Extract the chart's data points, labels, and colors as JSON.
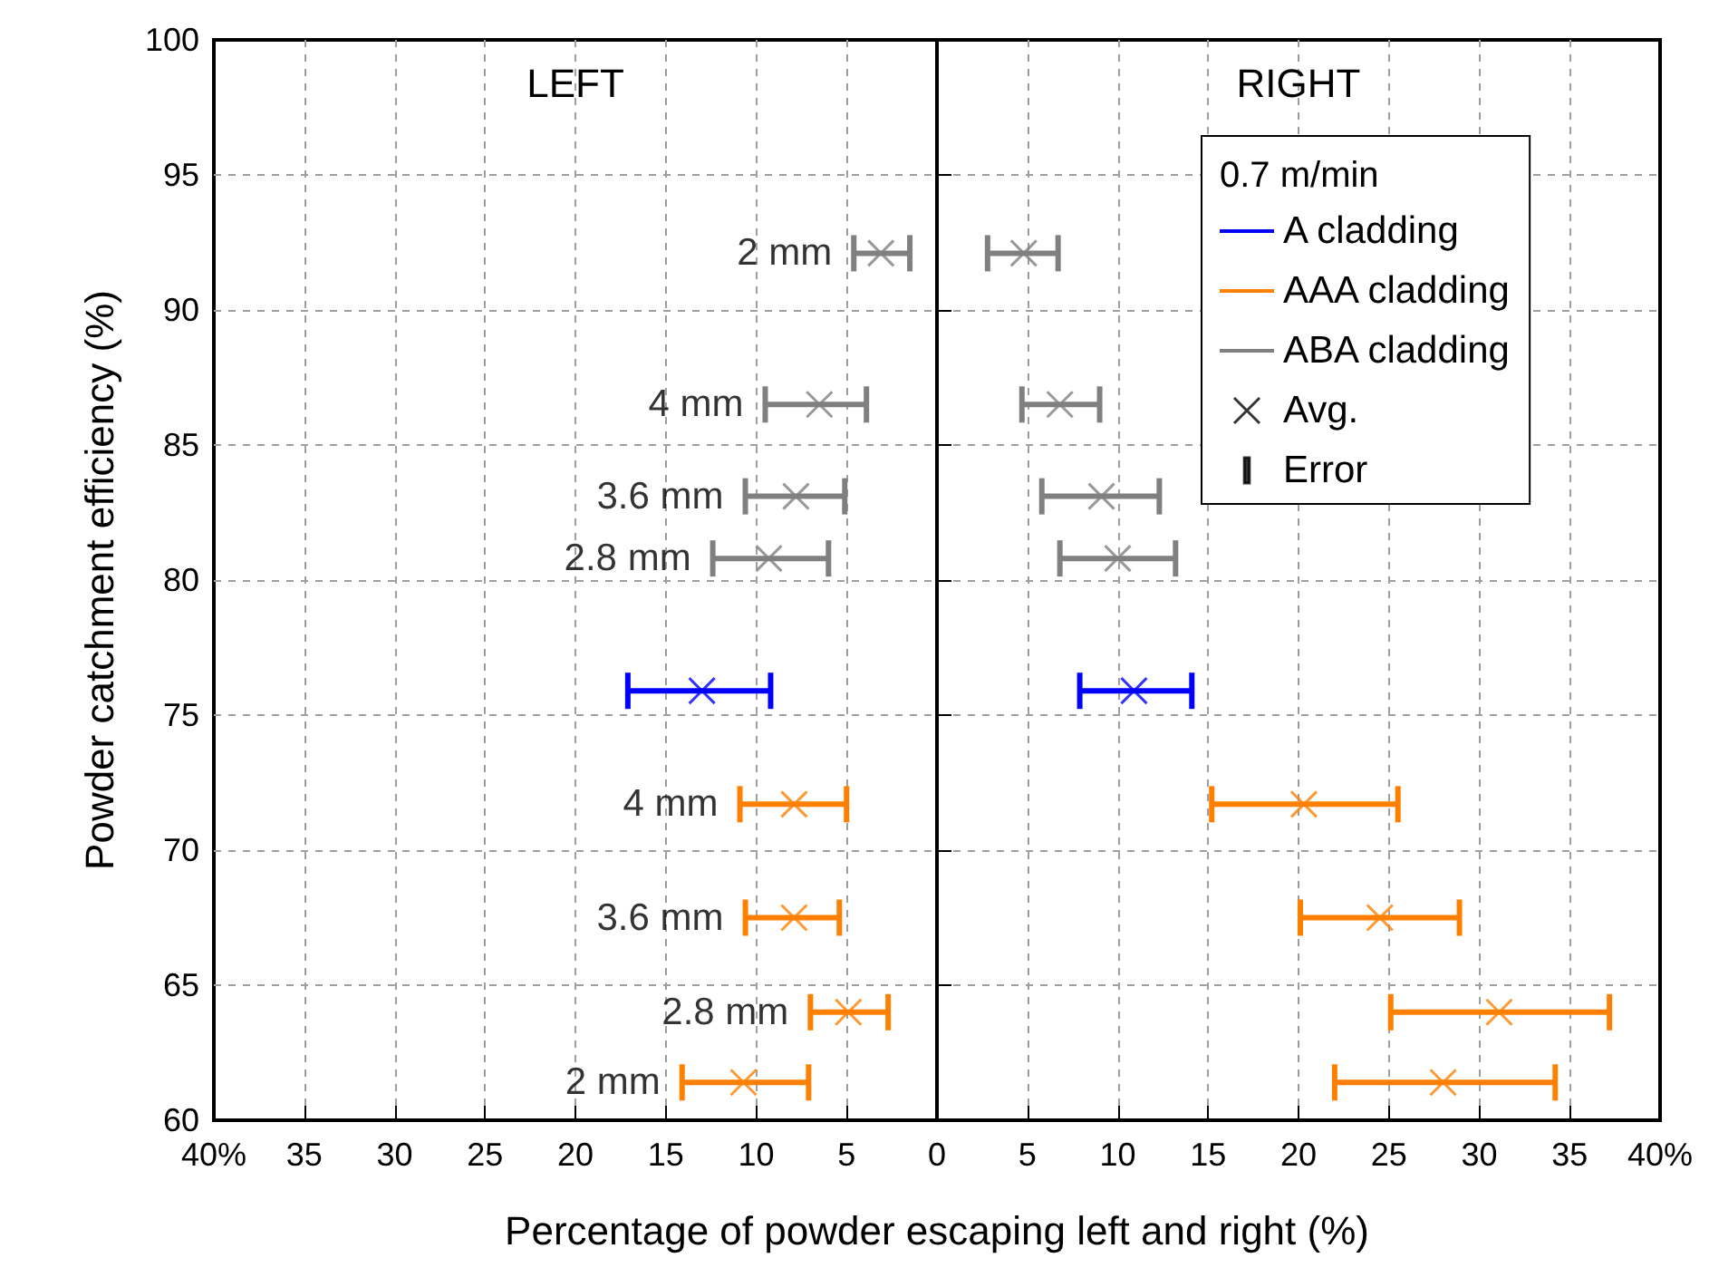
{
  "chart_data": {
    "type": "scatter",
    "xlabel": "Percentage of powder escaping left and right (%)",
    "ylabel": "Powder catchment efficiency (%)",
    "legend_title": "0.7 m/min",
    "xlim": [
      -40,
      40
    ],
    "ylim": [
      60,
      100
    ],
    "xticks": [
      {
        "value": -40,
        "label": "40%"
      },
      {
        "value": -35,
        "label": "35"
      },
      {
        "value": -30,
        "label": "30"
      },
      {
        "value": -25,
        "label": "25"
      },
      {
        "value": -20,
        "label": "20"
      },
      {
        "value": -15,
        "label": "15"
      },
      {
        "value": -10,
        "label": "10"
      },
      {
        "value": -5,
        "label": "5"
      },
      0,
      5,
      10,
      15,
      20,
      25,
      30,
      35,
      {
        "value": 40,
        "label": "40%"
      }
    ],
    "yticks": [
      60,
      65,
      70,
      75,
      80,
      85,
      90,
      95,
      100
    ],
    "grid": true,
    "legend": "top right",
    "marker": "cross",
    "series": [
      {
        "name": "A cladding",
        "color": "#0000ff",
        "x": [
          -13.0,
          10.9
        ],
        "values": [
          75.9,
          75.9
        ],
        "xerrors": [
          [
            -17.1,
            -9.2
          ],
          [
            7.9,
            14.1
          ]
        ]
      },
      {
        "name": "AAA cladding",
        "color": "#ff8000",
        "x": [
          -7.9,
          20.3,
          -7.9,
          24.5,
          -4.9,
          31.1,
          -10.7,
          28.0
        ],
        "values": [
          71.7,
          71.7,
          67.5,
          67.5,
          64.0,
          64.0,
          61.4,
          61.4
        ],
        "xerrors": [
          [
            -10.9,
            -5.0
          ],
          [
            15.2,
            25.5
          ],
          [
            -10.6,
            -5.4
          ],
          [
            20.1,
            28.9
          ],
          [
            -7.0,
            -2.7
          ],
          [
            25.1,
            37.2
          ],
          [
            -14.1,
            -7.1
          ],
          [
            22.0,
            34.2
          ]
        ]
      },
      {
        "name": "ABA cladding",
        "color": "#808080",
        "x": [
          -3.1,
          4.8,
          -6.5,
          6.8,
          -7.8,
          9.1,
          -9.3,
          10.0
        ],
        "values": [
          92.1,
          92.1,
          86.5,
          86.5,
          83.1,
          83.1,
          80.8,
          80.8
        ],
        "xerrors": [
          [
            -4.6,
            -1.5
          ],
          [
            2.8,
            6.7
          ],
          [
            -9.5,
            -3.9
          ],
          [
            4.7,
            9.0
          ],
          [
            -10.6,
            -5.1
          ],
          [
            5.8,
            12.3
          ],
          [
            -12.4,
            -6.0
          ],
          [
            6.8,
            13.2
          ]
        ]
      },
      {
        "name": "Avg.",
        "color": "#000000",
        "marker": "cross"
      },
      {
        "name": "Error",
        "color": "#000000",
        "marker": "none"
      }
    ],
    "annotations": [
      "LEFT",
      "RIGHT",
      {
        "text": "2 mm",
        "x": -4.6,
        "y": 92.1
      },
      {
        "text": "4 mm",
        "x": -9.5,
        "y": 86.5
      },
      {
        "text": "3.6 mm",
        "x": -10.6,
        "y": 83.1
      },
      {
        "text": "2.8 mm",
        "x": -12.4,
        "y": 80.8
      },
      {
        "text": "4 mm",
        "x": -10.9,
        "y": 71.7
      },
      {
        "text": "3.6 mm",
        "x": -10.6,
        "y": 67.5
      },
      {
        "text": "2.8 mm",
        "x": -7.0,
        "y": 64.0
      },
      {
        "text": "2 mm",
        "x": -14.1,
        "y": 61.4
      }
    ]
  }
}
